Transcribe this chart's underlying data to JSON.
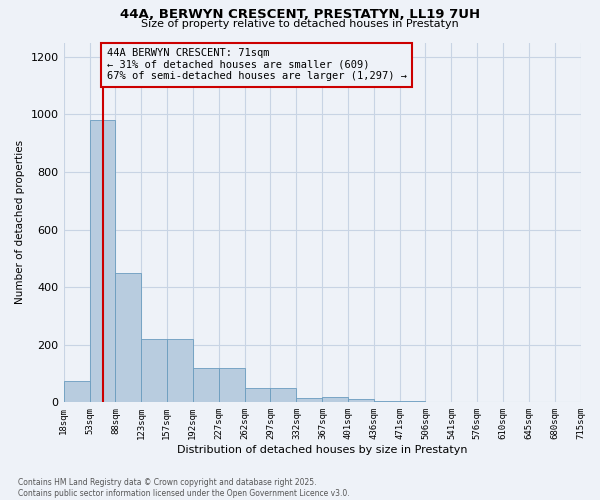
{
  "title": "44A, BERWYN CRESCENT, PRESTATYN, LL19 7UH",
  "subtitle": "Size of property relative to detached houses in Prestatyn",
  "xlabel": "Distribution of detached houses by size in Prestatyn",
  "ylabel": "Number of detached properties",
  "annotation_title": "44A BERWYN CRESCENT: 71sqm",
  "annotation_line1": "← 31% of detached houses are smaller (609)",
  "annotation_line2": "67% of semi-detached houses are larger (1,297) →",
  "footer_line1": "Contains HM Land Registry data © Crown copyright and database right 2025.",
  "footer_line2": "Contains public sector information licensed under the Open Government Licence v3.0.",
  "property_size_sqm": 71,
  "bin_edges": [
    18,
    53,
    88,
    123,
    157,
    192,
    227,
    262,
    297,
    332,
    367,
    401,
    436,
    471,
    506,
    541,
    576,
    610,
    645,
    680,
    715
  ],
  "bin_labels": [
    "18sqm",
    "53sqm",
    "88sqm",
    "123sqm",
    "157sqm",
    "192sqm",
    "227sqm",
    "262sqm",
    "297sqm",
    "332sqm",
    "367sqm",
    "401sqm",
    "436sqm",
    "471sqm",
    "506sqm",
    "541sqm",
    "576sqm",
    "610sqm",
    "645sqm",
    "680sqm",
    "715sqm"
  ],
  "bar_heights": [
    75,
    980,
    450,
    220,
    220,
    120,
    120,
    50,
    50,
    15,
    20,
    10,
    5,
    5,
    0,
    0,
    0,
    0,
    0,
    0
  ],
  "bar_color": "#b8ccdf",
  "bar_edge_color": "#6a9cbf",
  "red_line_color": "#cc0000",
  "annotation_box_edge_color": "#cc0000",
  "grid_color": "#c8d4e4",
  "background_color": "#eef2f8",
  "ylim": [
    0,
    1250
  ],
  "yticks": [
    0,
    200,
    400,
    600,
    800,
    1000,
    1200
  ]
}
